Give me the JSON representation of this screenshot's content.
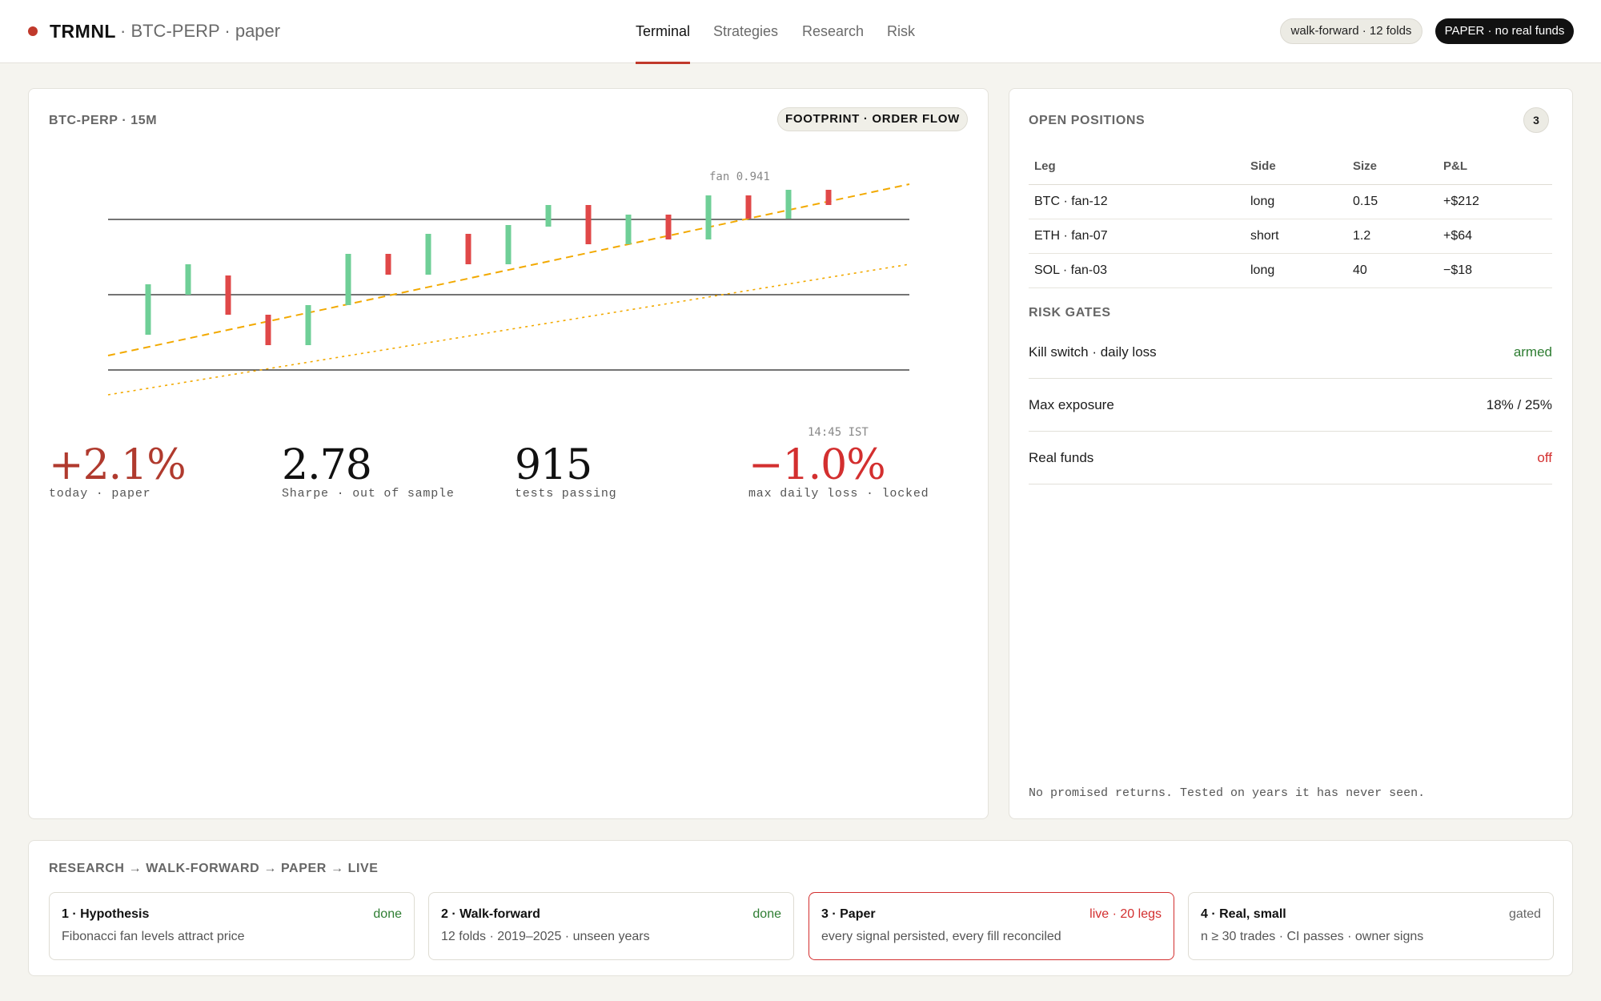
{
  "header": {
    "brand": "TRMNL",
    "context": "· BTC-PERP · paper",
    "nav": [
      "Terminal",
      "Strategies",
      "Research",
      "Risk"
    ],
    "active_nav": "Terminal",
    "walk_forward_badge": "walk-forward · 12 folds",
    "paper_badge": "PAPER · no real funds",
    "colors": {
      "accent": "#c0392b",
      "badge_dark": "#111111"
    }
  },
  "chart_panel": {
    "title": "BTC-PERP · 15M",
    "mode_badge": "FOOTPRINT · ORDER FLOW",
    "fan_label": "fan 0.941",
    "time_label": "14:45 IST"
  },
  "chart_data": {
    "type": "candlestick",
    "candles": [
      {
        "dir": "up"
      },
      {
        "dir": "up"
      },
      {
        "dir": "down"
      },
      {
        "dir": "down"
      },
      {
        "dir": "up"
      },
      {
        "dir": "up"
      },
      {
        "dir": "down"
      },
      {
        "dir": "up"
      },
      {
        "dir": "down"
      },
      {
        "dir": "up"
      },
      {
        "dir": "up"
      },
      {
        "dir": "down"
      },
      {
        "dir": "up"
      },
      {
        "dir": "down"
      },
      {
        "dir": "up"
      },
      {
        "dir": "down"
      },
      {
        "dir": "up"
      },
      {
        "dir": "down"
      }
    ],
    "levels": 3,
    "fan_lines": 2,
    "colors": {
      "up": "#6fcf97",
      "down": "#e04848",
      "fan": "#f2a900",
      "level": "#222222"
    }
  },
  "stats": [
    {
      "value": "+2.1%",
      "label": "today · paper",
      "color": "#b03a2e"
    },
    {
      "value": "2.78",
      "label": "Sharpe · out of sample",
      "color": "#111111"
    },
    {
      "value": "915",
      "label": "tests passing",
      "color": "#111111"
    },
    {
      "value": "−1.0%",
      "label": "max daily loss · locked",
      "color": "#d32f2f"
    }
  ],
  "positions": {
    "title": "OPEN POSITIONS",
    "count": "3",
    "columns": [
      "Leg",
      "Side",
      "Size",
      "P&L"
    ],
    "rows": [
      {
        "leg": "BTC · fan-12",
        "side": "long",
        "size": "0.15",
        "pnl": "+$212"
      },
      {
        "leg": "ETH · fan-07",
        "side": "short",
        "size": "1.2",
        "pnl": "+$64"
      },
      {
        "leg": "SOL · fan-03",
        "side": "long",
        "size": "40",
        "pnl": "−$18"
      }
    ]
  },
  "risk_gates": {
    "title": "RISK GATES",
    "items": [
      {
        "label": "Kill switch · daily loss",
        "value": "armed"
      },
      {
        "label": "Max exposure",
        "value": "18% / 25%"
      },
      {
        "label": "Real funds",
        "value": "off"
      }
    ]
  },
  "disclaimer": "No promised returns. Tested on years it has never seen.",
  "pipeline": {
    "title": "RESEARCH → WALK-FORWARD → PAPER → LIVE",
    "stages": [
      {
        "title": "1 · Hypothesis",
        "status": "done",
        "desc": "Fibonacci fan levels attract price"
      },
      {
        "title": "2 · Walk-forward",
        "status": "done",
        "desc": "12 folds · 2019–2025 · unseen years"
      },
      {
        "title": "3 · Paper",
        "status": "live · 20 legs",
        "desc": "every signal persisted, every fill reconciled"
      },
      {
        "title": "4 · Real, small",
        "status": "gated",
        "desc": "n ≥ 30 trades · CI passes · owner signs"
      }
    ]
  }
}
